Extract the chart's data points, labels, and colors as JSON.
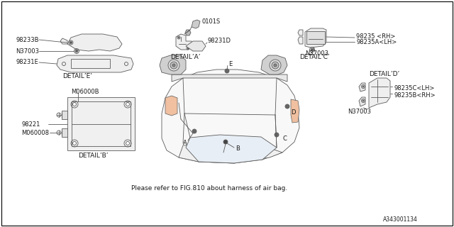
{
  "background_color": "#ffffff",
  "line_color": "#5a5a5a",
  "border_color": "#000000",
  "diagram_number": "A343001134",
  "note_text": "Please refer to FIG.810 about harness of air bag.",
  "labels": {
    "detail_a": "DETAIL’A’",
    "detail_b": "DETAIL’B’",
    "detail_c": "DETAIL’C’",
    "detail_d": "DETAIL’D’",
    "detail_e": "DETAIL’E’",
    "part_0101s": "0101S",
    "part_98231d": "98231D",
    "part_98233b": "98233B",
    "part_n37003_1": "N37003",
    "part_98231e": "98231E",
    "part_n37003_2": "N37003",
    "part_98235": "98235 <RH>",
    "part_98235a": "98235A<LH>",
    "part_m060008": "M060008",
    "part_m06000b": "M06000B",
    "part_98221": "98221",
    "part_n37003_3": "N37003",
    "part_98235b": "98235B<RH>",
    "part_98235c": "98235C<LH>",
    "point_a": "A",
    "point_b": "B",
    "point_c": "C",
    "point_d": "D",
    "point_e": "E"
  },
  "font_size_label": 6.0,
  "font_size_detail": 6.5,
  "font_size_note": 6.5,
  "font_size_diag": 5.5
}
